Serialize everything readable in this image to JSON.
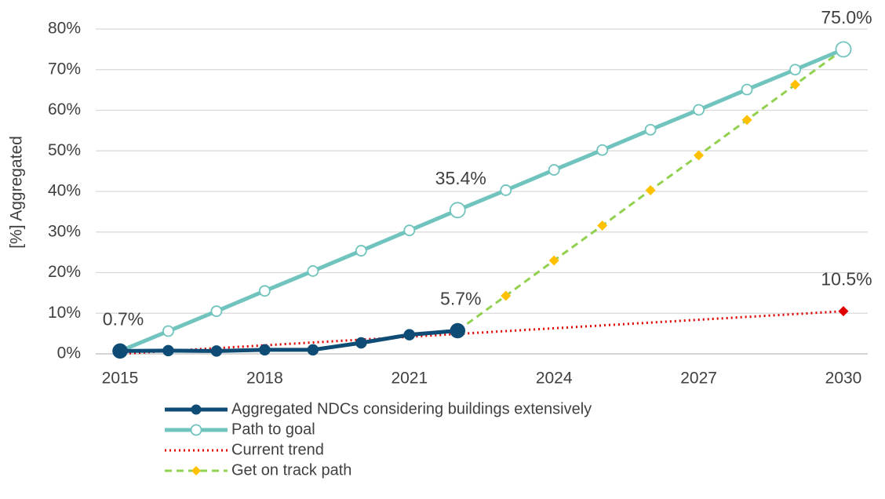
{
  "chart_data": {
    "type": "line",
    "y_label": "[%] Aggregated",
    "x": [
      2015,
      2016,
      2017,
      2018,
      2019,
      2020,
      2021,
      2022,
      2023,
      2024,
      2025,
      2026,
      2027,
      2028,
      2029,
      2030
    ],
    "xlim": [
      2015,
      2030
    ],
    "xticks": [
      2015,
      2018,
      2021,
      2024,
      2027,
      2030
    ],
    "ylim": [
      0,
      80
    ],
    "yticks": [
      {
        "value": 0,
        "label": "0%"
      },
      {
        "value": 10,
        "label": "10%"
      },
      {
        "value": 20,
        "label": "20%"
      },
      {
        "value": 30,
        "label": "30%"
      },
      {
        "value": 40,
        "label": "40%"
      },
      {
        "value": 50,
        "label": "50%"
      },
      {
        "value": 60,
        "label": "60%"
      },
      {
        "value": 70,
        "label": "70%"
      },
      {
        "value": 80,
        "label": "80%"
      }
    ],
    "grid": true,
    "legend": "bottom",
    "series": [
      {
        "name": "Aggregated NDCs considering buildings extensively",
        "color": "#0f4c75",
        "style": "solid",
        "marker": "circle",
        "values": [
          0.7,
          0.8,
          0.7,
          1.0,
          1.0,
          2.7,
          4.7,
          5.7,
          null,
          null,
          null,
          null,
          null,
          null,
          null,
          null
        ],
        "value_labels": [
          "0.7%",
          null,
          null,
          null,
          null,
          null,
          null,
          "5.7%",
          null,
          null,
          null,
          null,
          null,
          null,
          null,
          null
        ]
      },
      {
        "name": "Path to goal",
        "color": "#70c4bd",
        "style": "solid",
        "marker": "open-circle",
        "values": [
          0.7,
          5.6,
          10.5,
          15.5,
          20.4,
          25.4,
          30.4,
          35.4,
          40.3,
          45.3,
          50.2,
          55.2,
          60.1,
          65.1,
          70.0,
          75.0
        ],
        "value_labels": [
          null,
          null,
          null,
          null,
          null,
          null,
          null,
          "35.4%",
          null,
          null,
          null,
          null,
          null,
          null,
          null,
          "75.0%"
        ]
      },
      {
        "name": "Current trend",
        "color": "#e00000",
        "style": "dotted",
        "marker": "diamond",
        "markers": "labeled",
        "values": [
          0,
          0.7,
          1.4,
          2.1,
          2.8,
          3.5,
          4.2,
          4.9,
          5.6,
          6.3,
          7.0,
          7.7,
          8.4,
          9.1,
          9.8,
          10.5
        ],
        "value_labels": [
          null,
          null,
          null,
          null,
          null,
          null,
          null,
          null,
          null,
          null,
          null,
          null,
          null,
          null,
          null,
          "10.5%"
        ]
      },
      {
        "name": "Get on track path",
        "color": "#92d050",
        "marker_color": "#ffc000",
        "style": "dashed",
        "marker": "diamond",
        "values": [
          null,
          null,
          null,
          null,
          null,
          null,
          null,
          5.7,
          14.3,
          23.0,
          31.6,
          40.3,
          48.9,
          57.6,
          66.3,
          75.0
        ],
        "value_labels": [
          null,
          null,
          null,
          null,
          null,
          null,
          null,
          null,
          null,
          null,
          null,
          null,
          null,
          null,
          null,
          null
        ]
      }
    ]
  }
}
